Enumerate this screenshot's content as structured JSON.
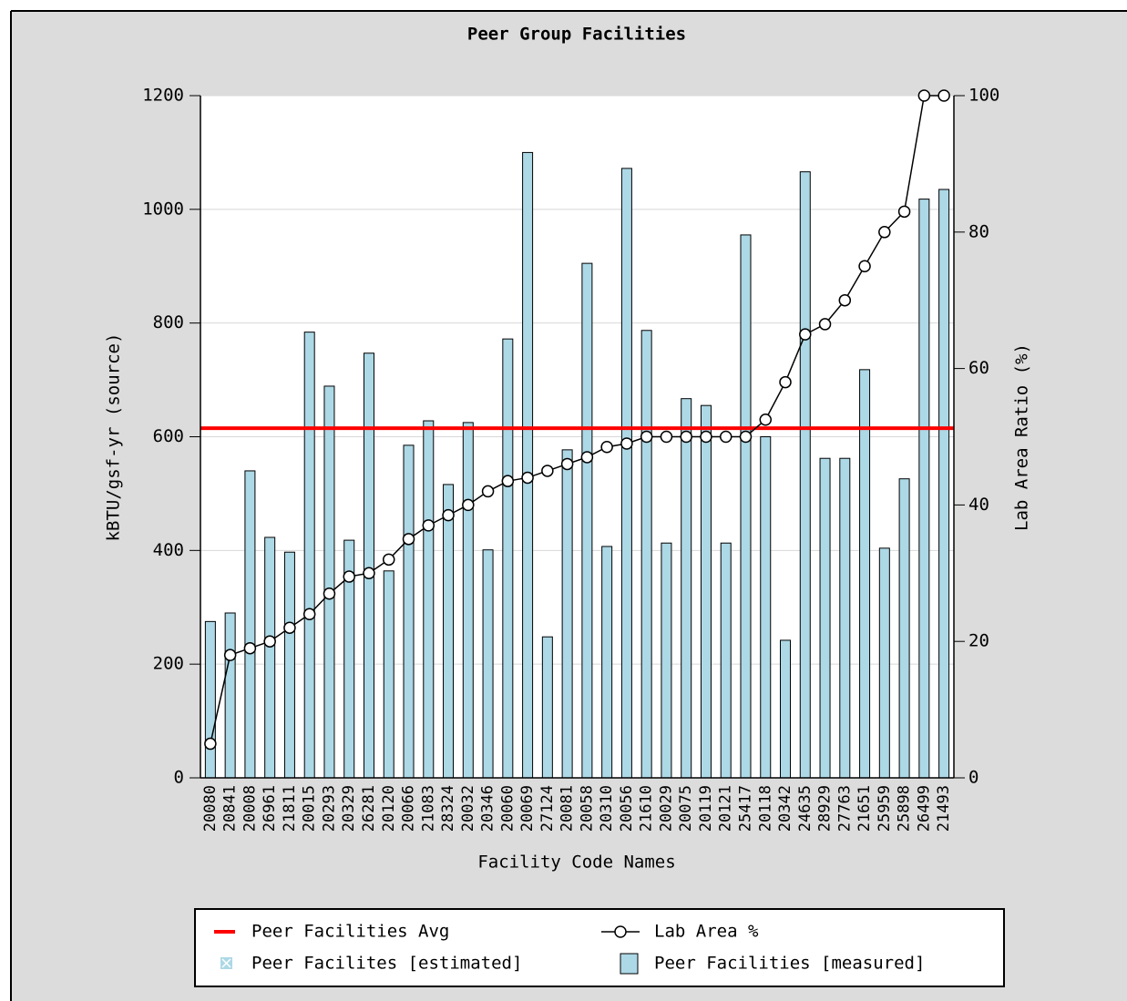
{
  "chart_data": {
    "type": "bar",
    "title": "Peer Group Facilities",
    "x_label": "Facility Code Names",
    "y_label": "kBTU/gsf-yr (source)",
    "y2_label": "Lab Area Ratio (%)",
    "categories": [
      "20080",
      "20841",
      "20008",
      "26961",
      "21811",
      "20015",
      "20293",
      "20329",
      "26281",
      "20120",
      "20066",
      "21083",
      "28324",
      "20032",
      "20346",
      "20060",
      "20069",
      "27124",
      "20081",
      "20058",
      "20310",
      "20056",
      "21610",
      "20029",
      "20075",
      "20119",
      "20121",
      "25417",
      "20118",
      "20342",
      "24635",
      "28929",
      "27763",
      "21651",
      "25959",
      "25898",
      "26499",
      "21493"
    ],
    "series": [
      {
        "name": "Peer Facilities [measured]",
        "color": "#add8e6",
        "values": [
          275,
          290,
          540,
          423,
          397,
          784,
          689,
          418,
          747,
          364,
          585,
          628,
          516,
          625,
          401,
          772,
          1100,
          248,
          577,
          905,
          407,
          1072,
          787,
          413,
          667,
          655,
          413,
          955,
          600,
          242,
          1066,
          562,
          562,
          718,
          404,
          526,
          1018,
          1035
        ]
      },
      {
        "name": "Lab Area %",
        "color": "#000000",
        "axis": "y2",
        "values": [
          5,
          18,
          19,
          20,
          22,
          24,
          27,
          29.5,
          30,
          32,
          35,
          37,
          38.5,
          40,
          42,
          43.5,
          44,
          45,
          46,
          47,
          48.5,
          49,
          50,
          50,
          50,
          50,
          50,
          50,
          52.5,
          58,
          65,
          66.5,
          70,
          75,
          80,
          83,
          100,
          100
        ]
      }
    ],
    "reference_line": {
      "name": "Peer Facilities Avg",
      "color": "#ff0000",
      "value": 615
    },
    "legend_extra": {
      "name": "Peer Facilites [estimated]",
      "color": "#add8e6"
    },
    "ylim": [
      0,
      1200
    ],
    "yticks": [
      0,
      200,
      400,
      600,
      800,
      1000,
      1200
    ],
    "y2lim": [
      0,
      100
    ],
    "y2ticks": [
      0,
      20,
      40,
      60,
      80,
      100
    ],
    "grid": true
  }
}
